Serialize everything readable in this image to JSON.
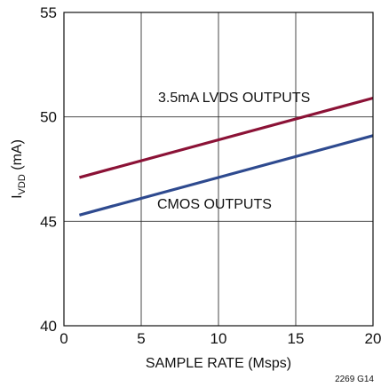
{
  "chart_data": {
    "type": "line",
    "title": "",
    "xlabel": "SAMPLE RATE (Msps)",
    "ylabel": {
      "main": "I",
      "subscript": "VDD",
      "unit": " (mA)"
    },
    "xlim": [
      0,
      20
    ],
    "ylim": [
      40,
      55
    ],
    "xticks": [
      0,
      5,
      10,
      15,
      20
    ],
    "yticks": [
      40,
      45,
      50,
      55
    ],
    "grid": true,
    "series": [
      {
        "name": "3.5mA LVDS OUTPUTS",
        "color": "#8b1236",
        "x": [
          1,
          20
        ],
        "y": [
          47.1,
          50.9
        ]
      },
      {
        "name": "CMOS OUTPUTS",
        "color": "#2e4a8f",
        "x": [
          1,
          20
        ],
        "y": [
          45.3,
          49.1
        ]
      }
    ],
    "figure_id": "2269 G14"
  }
}
